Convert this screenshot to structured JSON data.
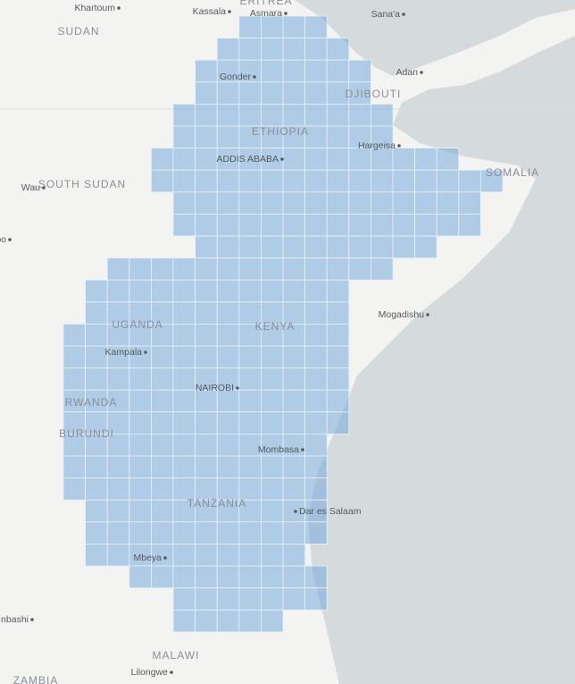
{
  "map": {
    "countries": [
      "ERITREA",
      "SUDAN",
      "DJIBOUTI",
      "ETHIOPIA",
      "SOUTH SUDAN",
      "SOMALIA",
      "UGANDA",
      "KENYA",
      "RWANDA",
      "BURUNDI",
      "TANZANIA",
      "MALAWI",
      "ZAMBIA"
    ],
    "cities": [
      "Khartoum",
      "Kassala",
      "Asmara",
      "Sana'a",
      "Adan",
      "Gonder",
      "Hargeisa",
      "ADDIS ABABA",
      "Wau",
      "oo",
      "Mogadishu",
      "Kampala",
      "NAIROBI",
      "Mombasa",
      "Dar es Salaam",
      "Mbeya",
      "nbashi",
      "Lilongwe"
    ]
  }
}
